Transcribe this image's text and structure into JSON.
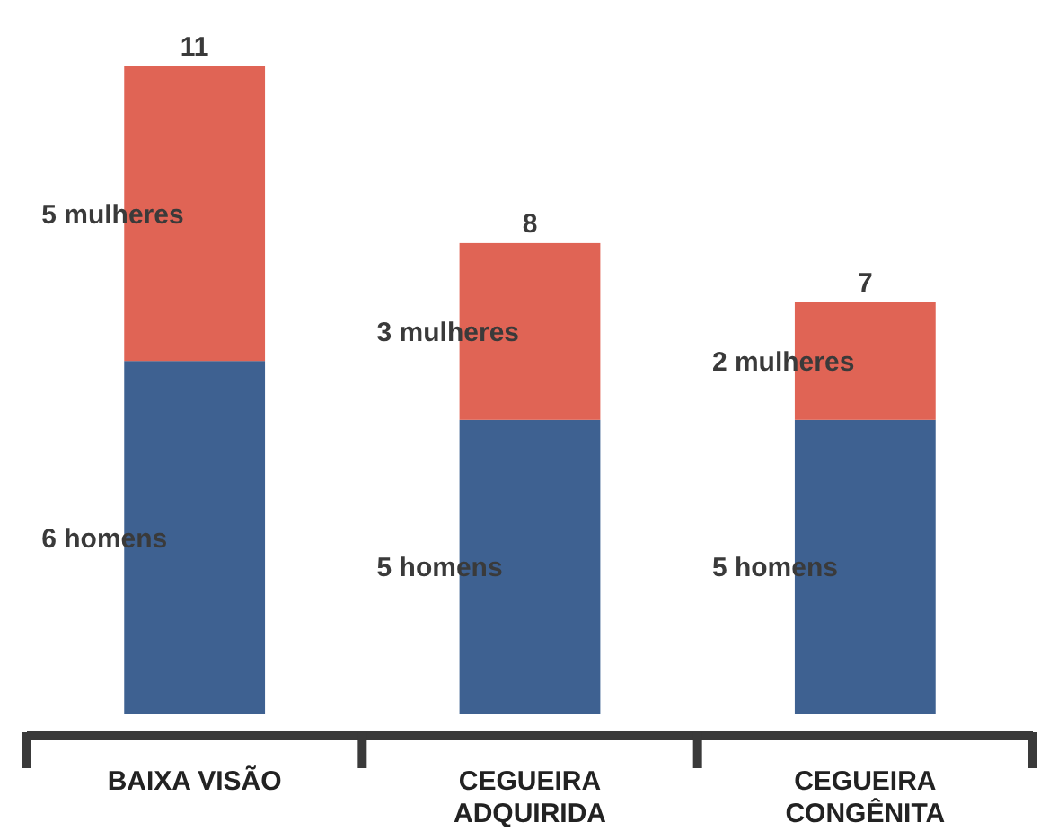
{
  "chart_data": {
    "type": "bar",
    "stacked": true,
    "categories": [
      "BAIXA VISÃO",
      "CEGUEIRA ADQUIRIDA",
      "CEGUEIRA CONGÊNITA"
    ],
    "series": [
      {
        "color": "#3e6191",
        "values": [
          6,
          5,
          5
        ],
        "value_labels": [
          "6 homens",
          "5 homens",
          "5 homens"
        ]
      },
      {
        "color": "#e06455",
        "values": [
          5,
          3,
          2
        ],
        "value_labels": [
          "5 mulheres",
          "3 mulheres",
          "2 mulheres"
        ]
      }
    ],
    "totals": [
      "11",
      "8",
      "7"
    ]
  }
}
